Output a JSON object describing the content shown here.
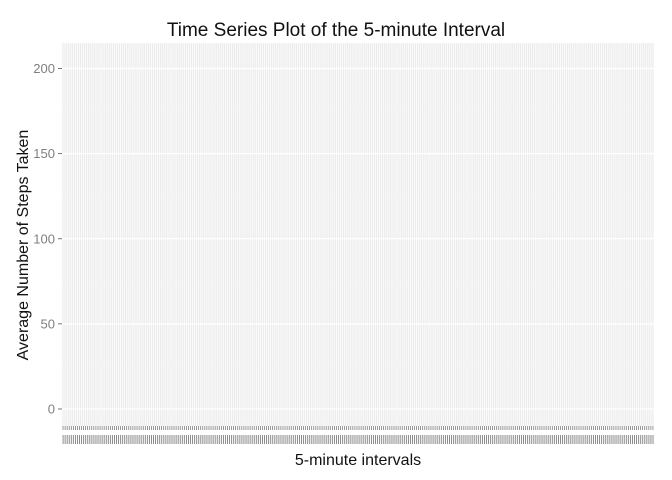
{
  "chart_data": {
    "type": "line",
    "title": "Time Series Plot of the 5-minute Interval",
    "xlabel": "5-minute intervals",
    "ylabel": "Average Number of Steps Taken",
    "ylim": [
      -10,
      215
    ],
    "y_ticks": [
      0,
      50,
      100,
      150,
      200
    ],
    "x_category_count": 288,
    "x_axis_type": "discrete",
    "grid": true,
    "legend": "none",
    "series": [],
    "colors": {
      "panel_background": "#ebebeb",
      "grid_major": "#ffffff",
      "tick_text": "#7f7f7f"
    }
  }
}
